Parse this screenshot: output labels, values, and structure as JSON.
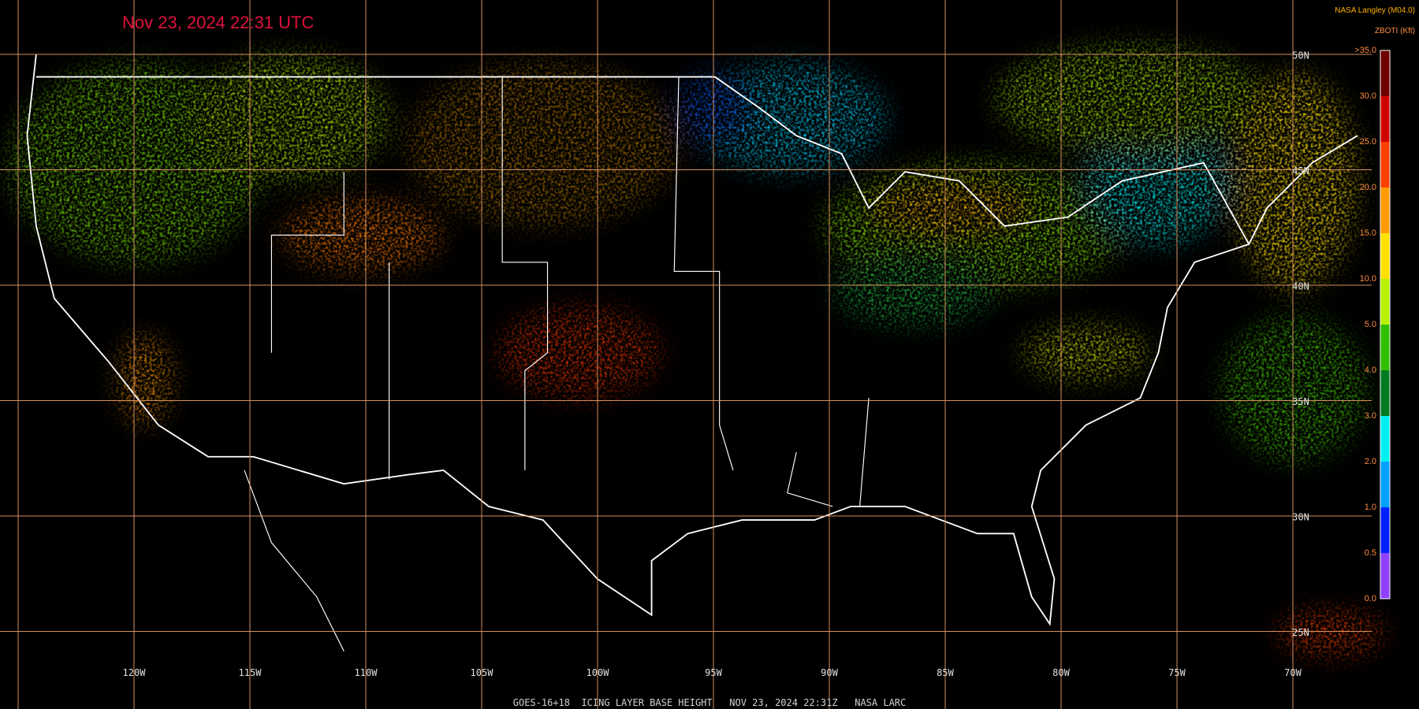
{
  "header": {
    "title": "Nov 23, 2024 22:31 UTC",
    "credit": "NASA Langley (M04.0)",
    "product": "ZBOTI (Kft)"
  },
  "legend": {
    "labels": [
      ">35.0",
      "30.0",
      "25.0",
      "20.0",
      "15.0",
      "10.0",
      "5.0",
      "4.0",
      "3.0",
      "2.0",
      "1.0",
      "0.5",
      "0.0"
    ],
    "colors": [
      "#6e0000",
      "#d00000",
      "#ff4000",
      "#ff9a00",
      "#ffe000",
      "#b8f000",
      "#30c000",
      "#007a20",
      "#00f0f0",
      "#00a0ff",
      "#0020ff",
      "#9040ff"
    ]
  },
  "grid": {
    "longitudes": [
      "120W",
      "115W",
      "110W",
      "105W",
      "100W",
      "95W",
      "90W",
      "85W",
      "80W",
      "75W",
      "70W"
    ],
    "latitudes": [
      "50N",
      "45N",
      "40N",
      "35N",
      "30N",
      "25N"
    ]
  },
  "footer": "GOES-16+18  ICING LAYER BASE HEIGHT   NOV 23, 2024 22:31Z   NASA LARC"
}
